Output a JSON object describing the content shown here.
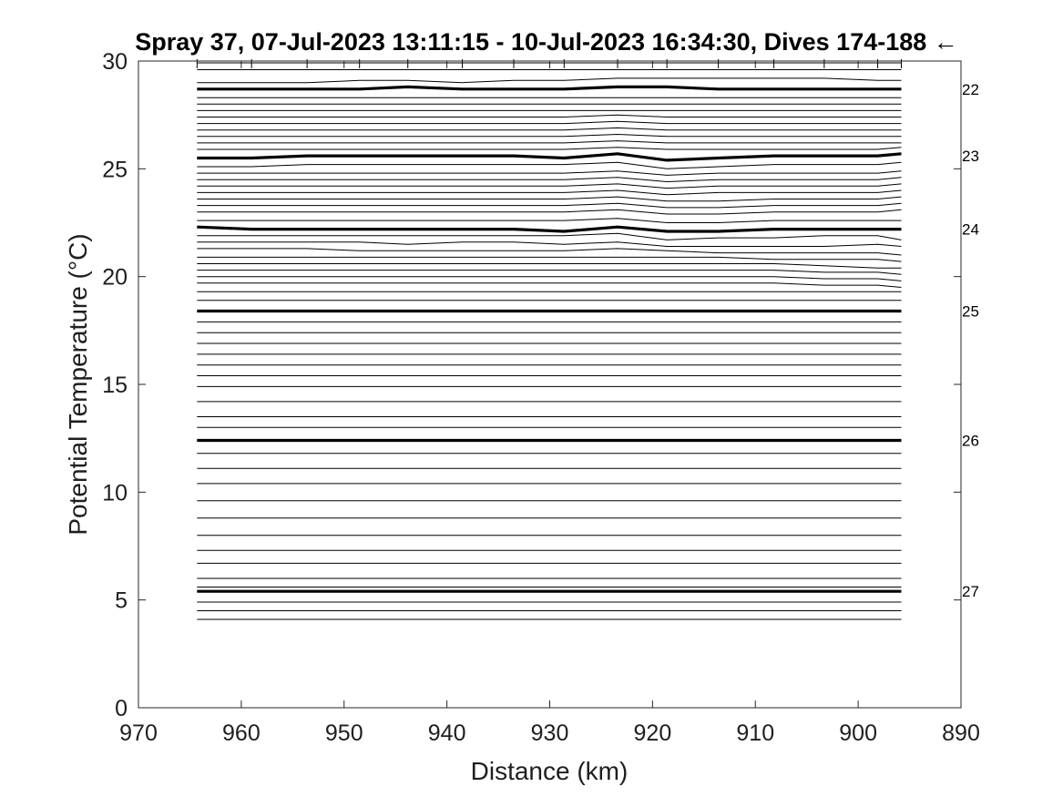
{
  "chart_data": {
    "type": "line",
    "title": "Spray 37, 07-Jul-2023 13:11:15 - 10-Jul-2023 16:34:30, Dives 174-188 ←",
    "xlabel": "Distance (km)",
    "ylabel": "Potential Temperature (°C)",
    "xlim": [
      970,
      890
    ],
    "ylim": [
      0,
      30
    ],
    "x_ticks": [
      "970",
      "960",
      "950",
      "940",
      "930",
      "920",
      "910",
      "900",
      "890"
    ],
    "y_ticks": [
      "0",
      "5",
      "10",
      "15",
      "20",
      "25",
      "30"
    ],
    "grid": false,
    "legend": "none",
    "dive_distances": [
      964.3,
      959.0,
      953.6,
      948.5,
      943.8,
      938.5,
      933.5,
      928.6,
      923.4,
      918.6,
      913.6,
      908.2,
      903.3,
      898.1,
      895.8
    ],
    "isopycnal_labels": [
      {
        "label": "22",
        "y": 28.7
      },
      {
        "label": "23",
        "y": 25.6
      },
      {
        "label": "24",
        "y": 22.2
      },
      {
        "label": "25",
        "y": 18.4
      },
      {
        "label": "26",
        "y": 12.4
      },
      {
        "label": "27",
        "y": 5.4
      }
    ],
    "series": [
      {
        "bold": false,
        "y": [
          29.6,
          29.6,
          29.6,
          29.6,
          29.6,
          29.6,
          29.6,
          29.6,
          29.6,
          29.6,
          29.6,
          29.6,
          29.6,
          29.6,
          29.6
        ]
      },
      {
        "bold": false,
        "y": [
          29.0,
          29.0,
          29.0,
          29.1,
          29.1,
          29.0,
          29.1,
          29.1,
          29.2,
          29.2,
          29.2,
          29.2,
          29.2,
          29.1,
          29.1
        ]
      },
      {
        "bold": true,
        "y": [
          28.7,
          28.7,
          28.7,
          28.7,
          28.8,
          28.7,
          28.7,
          28.7,
          28.8,
          28.8,
          28.7,
          28.7,
          28.7,
          28.7,
          28.7
        ]
      },
      {
        "bold": false,
        "y": [
          28.3,
          28.3,
          28.3,
          28.3,
          28.3,
          28.3,
          28.3,
          28.3,
          28.3,
          28.3,
          28.3,
          28.3,
          28.3,
          28.3,
          28.3
        ]
      },
      {
        "bold": false,
        "y": [
          28.0,
          28.0,
          28.0,
          28.0,
          28.0,
          28.0,
          28.0,
          28.0,
          28.0,
          28.0,
          28.0,
          28.0,
          28.0,
          28.0,
          28.0
        ]
      },
      {
        "bold": false,
        "y": [
          27.7,
          27.7,
          27.7,
          27.7,
          27.7,
          27.7,
          27.7,
          27.7,
          27.7,
          27.7,
          27.7,
          27.7,
          27.7,
          27.7,
          27.7
        ]
      },
      {
        "bold": false,
        "y": [
          27.4,
          27.4,
          27.4,
          27.4,
          27.4,
          27.4,
          27.4,
          27.4,
          27.5,
          27.4,
          27.4,
          27.4,
          27.4,
          27.4,
          27.4
        ]
      },
      {
        "bold": false,
        "y": [
          27.1,
          27.1,
          27.1,
          27.1,
          27.1,
          27.1,
          27.1,
          27.1,
          27.2,
          27.1,
          27.1,
          27.1,
          27.1,
          27.1,
          27.1
        ]
      },
      {
        "bold": false,
        "y": [
          26.8,
          26.8,
          26.8,
          26.8,
          26.8,
          26.8,
          26.8,
          26.8,
          26.9,
          26.8,
          26.8,
          26.8,
          26.8,
          26.8,
          26.8
        ]
      },
      {
        "bold": false,
        "y": [
          26.5,
          26.5,
          26.5,
          26.5,
          26.5,
          26.5,
          26.5,
          26.5,
          26.6,
          26.5,
          26.5,
          26.5,
          26.5,
          26.5,
          26.5
        ]
      },
      {
        "bold": false,
        "y": [
          26.2,
          26.2,
          26.2,
          26.2,
          26.2,
          26.2,
          26.2,
          26.2,
          26.3,
          26.2,
          26.2,
          26.2,
          26.2,
          26.2,
          26.2
        ]
      },
      {
        "bold": false,
        "y": [
          25.9,
          25.9,
          25.9,
          25.9,
          25.9,
          25.9,
          25.9,
          25.9,
          26.0,
          25.9,
          25.9,
          25.9,
          25.9,
          25.9,
          26.0
        ]
      },
      {
        "bold": true,
        "y": [
          25.5,
          25.5,
          25.6,
          25.6,
          25.6,
          25.6,
          25.6,
          25.5,
          25.7,
          25.4,
          25.5,
          25.6,
          25.6,
          25.6,
          25.7
        ]
      },
      {
        "bold": false,
        "y": [
          25.1,
          25.1,
          25.2,
          25.2,
          25.2,
          25.2,
          25.2,
          25.2,
          25.3,
          25.0,
          25.1,
          25.2,
          25.2,
          25.2,
          25.3
        ]
      },
      {
        "bold": false,
        "y": [
          24.8,
          24.8,
          24.8,
          24.8,
          24.8,
          24.8,
          24.8,
          24.8,
          24.9,
          24.7,
          24.8,
          24.8,
          24.8,
          24.8,
          24.9
        ]
      },
      {
        "bold": false,
        "y": [
          24.5,
          24.5,
          24.5,
          24.5,
          24.5,
          24.5,
          24.5,
          24.5,
          24.6,
          24.4,
          24.5,
          24.5,
          24.5,
          24.5,
          24.6
        ]
      },
      {
        "bold": false,
        "y": [
          24.2,
          24.2,
          24.2,
          24.2,
          24.2,
          24.2,
          24.2,
          24.2,
          24.3,
          24.1,
          24.2,
          24.2,
          24.2,
          24.2,
          24.3
        ]
      },
      {
        "bold": false,
        "y": [
          23.9,
          23.9,
          23.9,
          23.9,
          23.9,
          23.9,
          23.9,
          23.9,
          24.0,
          23.8,
          23.9,
          23.9,
          23.9,
          23.9,
          24.0
        ]
      },
      {
        "bold": false,
        "y": [
          23.6,
          23.6,
          23.6,
          23.6,
          23.6,
          23.6,
          23.6,
          23.6,
          23.7,
          23.5,
          23.5,
          23.6,
          23.6,
          23.6,
          23.7
        ]
      },
      {
        "bold": false,
        "y": [
          23.3,
          23.3,
          23.3,
          23.3,
          23.3,
          23.3,
          23.3,
          23.3,
          23.4,
          23.2,
          23.2,
          23.3,
          23.3,
          23.3,
          23.4
        ]
      },
      {
        "bold": false,
        "y": [
          23.0,
          23.0,
          23.0,
          23.0,
          23.0,
          23.0,
          23.0,
          23.0,
          23.1,
          22.9,
          22.9,
          23.0,
          23.0,
          23.0,
          23.1
        ]
      },
      {
        "bold": false,
        "y": [
          22.6,
          22.6,
          22.6,
          22.6,
          22.6,
          22.6,
          22.6,
          22.6,
          22.7,
          22.5,
          22.5,
          22.6,
          22.6,
          22.6,
          22.6
        ]
      },
      {
        "bold": true,
        "y": [
          22.3,
          22.2,
          22.2,
          22.2,
          22.2,
          22.2,
          22.2,
          22.1,
          22.3,
          22.1,
          22.1,
          22.2,
          22.2,
          22.2,
          22.2
        ]
      },
      {
        "bold": false,
        "y": [
          21.9,
          21.9,
          21.9,
          21.9,
          21.9,
          21.9,
          21.9,
          21.9,
          22.0,
          21.7,
          21.8,
          21.8,
          21.9,
          21.9,
          21.7
        ]
      },
      {
        "bold": false,
        "y": [
          21.6,
          21.6,
          21.6,
          21.6,
          21.5,
          21.6,
          21.6,
          21.5,
          21.6,
          21.4,
          21.4,
          21.4,
          21.4,
          21.5,
          21.4
        ]
      },
      {
        "bold": false,
        "y": [
          21.3,
          21.3,
          21.3,
          21.2,
          21.2,
          21.2,
          21.2,
          21.2,
          21.3,
          21.2,
          21.1,
          21.1,
          21.1,
          21.1,
          21.0
        ]
      },
      {
        "bold": false,
        "y": [
          20.9,
          20.9,
          20.9,
          20.9,
          20.9,
          20.9,
          20.9,
          20.9,
          20.9,
          20.9,
          20.9,
          20.8,
          20.8,
          20.8,
          20.7
        ]
      },
      {
        "bold": false,
        "y": [
          20.6,
          20.6,
          20.6,
          20.6,
          20.6,
          20.6,
          20.6,
          20.6,
          20.6,
          20.6,
          20.6,
          20.6,
          20.5,
          20.4,
          20.4
        ]
      },
      {
        "bold": false,
        "y": [
          20.3,
          20.3,
          20.3,
          20.3,
          20.3,
          20.3,
          20.3,
          20.3,
          20.3,
          20.3,
          20.3,
          20.3,
          20.2,
          20.2,
          20.1
        ]
      },
      {
        "bold": false,
        "y": [
          20.0,
          20.0,
          20.0,
          20.0,
          20.0,
          20.0,
          20.0,
          20.0,
          20.0,
          20.0,
          20.0,
          20.0,
          19.9,
          19.9,
          19.8
        ]
      },
      {
        "bold": false,
        "y": [
          19.7,
          19.7,
          19.7,
          19.7,
          19.7,
          19.7,
          19.7,
          19.7,
          19.7,
          19.7,
          19.7,
          19.7,
          19.6,
          19.6,
          19.5
        ]
      },
      {
        "bold": false,
        "y": [
          19.3,
          19.3,
          19.3,
          19.3,
          19.3,
          19.3,
          19.3,
          19.3,
          19.3,
          19.3,
          19.3,
          19.3,
          19.3,
          19.3,
          19.3
        ]
      },
      {
        "bold": false,
        "y": [
          18.9,
          18.9,
          18.9,
          18.9,
          18.9,
          18.9,
          18.9,
          18.9,
          18.9,
          18.9,
          18.9,
          18.9,
          18.9,
          18.9,
          18.9
        ]
      },
      {
        "bold": true,
        "y": [
          18.4,
          18.4,
          18.4,
          18.4,
          18.4,
          18.4,
          18.4,
          18.4,
          18.4,
          18.4,
          18.4,
          18.4,
          18.4,
          18.4,
          18.4
        ]
      },
      {
        "bold": false,
        "y": [
          17.9,
          17.9,
          17.9,
          17.9,
          17.9,
          17.9,
          17.9,
          17.9,
          17.9,
          17.9,
          17.9,
          17.9,
          17.9,
          17.9,
          17.9
        ]
      },
      {
        "bold": false,
        "y": [
          17.4,
          17.4,
          17.4,
          17.4,
          17.4,
          17.4,
          17.4,
          17.4,
          17.4,
          17.4,
          17.4,
          17.4,
          17.4,
          17.4,
          17.4
        ]
      },
      {
        "bold": false,
        "y": [
          16.9,
          16.9,
          16.9,
          16.9,
          16.9,
          16.9,
          16.9,
          16.9,
          16.9,
          16.9,
          16.9,
          16.9,
          16.9,
          16.9,
          16.9
        ]
      },
      {
        "bold": false,
        "y": [
          16.4,
          16.4,
          16.4,
          16.4,
          16.4,
          16.4,
          16.4,
          16.4,
          16.4,
          16.4,
          16.4,
          16.4,
          16.4,
          16.4,
          16.4
        ]
      },
      {
        "bold": false,
        "y": [
          15.9,
          15.9,
          15.9,
          15.9,
          15.9,
          15.9,
          15.9,
          15.9,
          15.9,
          15.9,
          15.9,
          15.9,
          15.9,
          15.9,
          15.9
        ]
      },
      {
        "bold": false,
        "y": [
          15.4,
          15.4,
          15.4,
          15.4,
          15.4,
          15.4,
          15.4,
          15.4,
          15.4,
          15.4,
          15.4,
          15.4,
          15.4,
          15.4,
          15.4
        ]
      },
      {
        "bold": false,
        "y": [
          14.9,
          14.9,
          14.9,
          14.9,
          14.9,
          14.9,
          14.9,
          14.9,
          14.9,
          14.9,
          14.9,
          14.9,
          14.9,
          14.9,
          14.9
        ]
      },
      {
        "bold": false,
        "y": [
          14.2,
          14.2,
          14.2,
          14.2,
          14.2,
          14.2,
          14.2,
          14.2,
          14.2,
          14.2,
          14.2,
          14.2,
          14.2,
          14.2,
          14.2
        ]
      },
      {
        "bold": false,
        "y": [
          13.5,
          13.5,
          13.5,
          13.5,
          13.5,
          13.5,
          13.5,
          13.5,
          13.5,
          13.5,
          13.5,
          13.5,
          13.5,
          13.5,
          13.5
        ]
      },
      {
        "bold": false,
        "y": [
          13.0,
          13.0,
          13.0,
          13.0,
          13.0,
          13.0,
          13.0,
          13.0,
          13.0,
          13.0,
          13.0,
          13.0,
          13.0,
          13.0,
          13.0
        ]
      },
      {
        "bold": true,
        "y": [
          12.4,
          12.4,
          12.4,
          12.4,
          12.4,
          12.4,
          12.4,
          12.4,
          12.4,
          12.4,
          12.4,
          12.4,
          12.4,
          12.4,
          12.4
        ]
      },
      {
        "bold": false,
        "y": [
          11.8,
          11.8,
          11.8,
          11.8,
          11.8,
          11.8,
          11.8,
          11.8,
          11.8,
          11.8,
          11.8,
          11.8,
          11.8,
          11.8,
          11.8
        ]
      },
      {
        "bold": false,
        "y": [
          11.1,
          11.1,
          11.1,
          11.1,
          11.1,
          11.1,
          11.1,
          11.1,
          11.1,
          11.1,
          11.1,
          11.1,
          11.1,
          11.1,
          11.1
        ]
      },
      {
        "bold": false,
        "y": [
          10.4,
          10.4,
          10.4,
          10.4,
          10.4,
          10.4,
          10.4,
          10.4,
          10.4,
          10.4,
          10.4,
          10.4,
          10.4,
          10.4,
          10.4
        ]
      },
      {
        "bold": false,
        "y": [
          9.6,
          9.6,
          9.6,
          9.6,
          9.6,
          9.6,
          9.6,
          9.6,
          9.6,
          9.6,
          9.6,
          9.6,
          9.6,
          9.6,
          9.6
        ]
      },
      {
        "bold": false,
        "y": [
          8.8,
          8.8,
          8.8,
          8.8,
          8.8,
          8.8,
          8.8,
          8.8,
          8.8,
          8.8,
          8.8,
          8.8,
          8.8,
          8.8,
          8.8
        ]
      },
      {
        "bold": false,
        "y": [
          8.0,
          8.0,
          8.0,
          8.0,
          8.0,
          8.0,
          8.0,
          8.0,
          8.0,
          8.0,
          8.0,
          8.0,
          8.0,
          8.0,
          8.0
        ]
      },
      {
        "bold": false,
        "y": [
          7.3,
          7.3,
          7.3,
          7.3,
          7.3,
          7.3,
          7.3,
          7.3,
          7.3,
          7.3,
          7.3,
          7.3,
          7.3,
          7.3,
          7.3
        ]
      },
      {
        "bold": false,
        "y": [
          6.7,
          6.7,
          6.7,
          6.7,
          6.7,
          6.7,
          6.7,
          6.7,
          6.7,
          6.7,
          6.7,
          6.7,
          6.7,
          6.7,
          6.7
        ]
      },
      {
        "bold": false,
        "y": [
          6.0,
          6.0,
          6.0,
          6.0,
          6.0,
          6.0,
          6.0,
          6.0,
          6.0,
          6.0,
          6.0,
          6.0,
          6.0,
          6.0,
          6.0
        ]
      },
      {
        "bold": false,
        "y": [
          5.6,
          5.6,
          5.6,
          5.6,
          5.6,
          5.6,
          5.6,
          5.6,
          5.6,
          5.6,
          5.6,
          5.6,
          5.6,
          5.6,
          5.6
        ]
      },
      {
        "bold": true,
        "y": [
          5.4,
          5.4,
          5.4,
          5.4,
          5.4,
          5.4,
          5.4,
          5.4,
          5.4,
          5.4,
          5.4,
          5.4,
          5.4,
          5.4,
          5.4
        ]
      },
      {
        "bold": false,
        "y": [
          4.9,
          4.9,
          4.9,
          4.9,
          4.9,
          4.9,
          4.9,
          4.9,
          4.9,
          4.9,
          4.9,
          4.9,
          4.9,
          4.9,
          4.9
        ]
      },
      {
        "bold": false,
        "y": [
          4.5,
          4.5,
          4.5,
          4.5,
          4.5,
          4.5,
          4.5,
          4.5,
          4.5,
          4.5,
          4.5,
          4.5,
          4.5,
          4.5,
          4.5
        ]
      },
      {
        "bold": false,
        "y": [
          4.1,
          4.1,
          4.1,
          4.1,
          4.1,
          4.1,
          4.1,
          4.1,
          4.1,
          4.1,
          4.1,
          4.1,
          4.1,
          4.1,
          4.1
        ]
      }
    ]
  }
}
